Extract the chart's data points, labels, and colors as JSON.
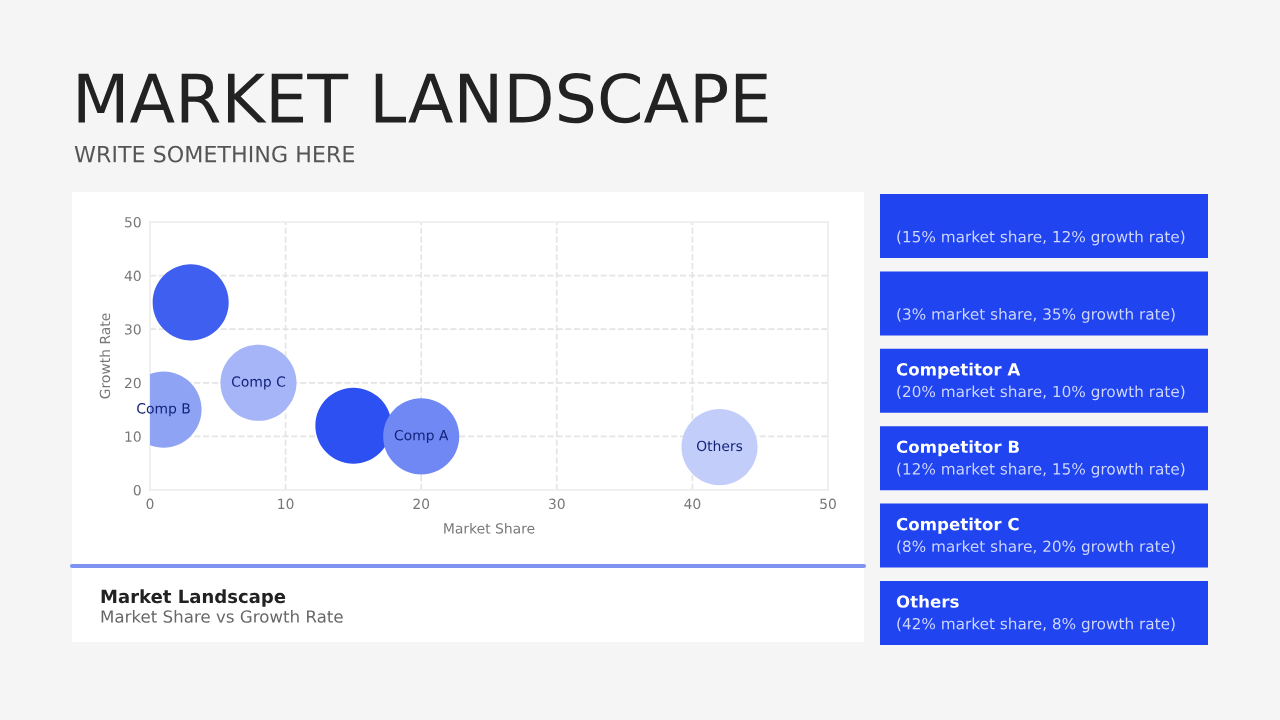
{
  "chart_data": {
    "type": "bubble",
    "title": "MARKET LANDSCAPE",
    "subtitle": "WRITE SOMETHING HERE",
    "xlabel": "Market Share",
    "ylabel": "Growth Rate",
    "x": [
      3,
      1,
      8,
      15,
      20,
      42
    ],
    "values": [
      35,
      15,
      20,
      12,
      10,
      8
    ],
    "sizes": [
      1,
      1,
      1,
      1,
      1,
      1
    ],
    "colors": [
      "#3f5ff0",
      "#8fa3f5",
      "#a5b5f8",
      "#2c50f1",
      "#6f88f3",
      "#c3cdfa"
    ],
    "xlim": [
      0,
      50
    ],
    "ylim": [
      0,
      50
    ],
    "xticks": [
      0,
      10,
      20,
      30,
      40,
      50
    ],
    "yticks": [
      0,
      10,
      20,
      30,
      40,
      50
    ],
    "grid": true,
    "legend": false,
    "annotations": [
      {
        "text": "Comp B",
        "x": 1,
        "y": 15
      },
      {
        "text": "Comp C",
        "x": 8,
        "y": 20
      },
      {
        "text": "Comp A",
        "x": 20,
        "y": 10
      },
      {
        "text": "Others",
        "x": 42,
        "y": 8
      },
      "Market Landscape\nMarket Share vs Growth Rate",
      "(15% market share, 12% growth rate)",
      "(3% market share, 35% growth rate)",
      "Competitor A\n(20% market share, 10% growth rate)",
      "Competitor B\n(12% market share, 15% growth rate)",
      "Competitor C\n(8% market share, 20% growth rate)",
      "Others\n(42% market share, 8% growth rate)"
    ]
  }
}
